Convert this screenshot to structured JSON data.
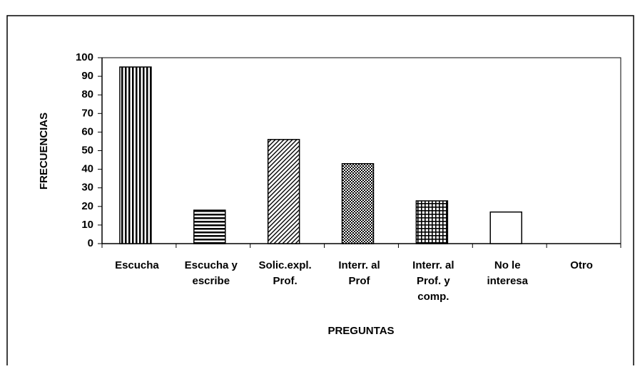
{
  "chart_data": {
    "type": "bar",
    "categories": [
      "Escucha",
      "Escucha y\nescribe",
      "Solic.expl.\nProf.",
      "Interr. al\nProf",
      "Interr. al\nProf. y\ncomp.",
      "No le\ninteresa",
      "Otro"
    ],
    "values": [
      95,
      18,
      56,
      43,
      23,
      17,
      0
    ],
    "patterns": [
      "vertical",
      "horizontal",
      "diagonal",
      "dots",
      "grid",
      "none",
      "none"
    ],
    "color": "#000000",
    "xlabel": "PREGUNTAS",
    "ylabel": "FRECUENCIAS",
    "ylim": [
      0,
      100
    ],
    "yticks": [
      0,
      10,
      20,
      30,
      40,
      50,
      60,
      70,
      80,
      90,
      100
    ],
    "grid": false
  }
}
